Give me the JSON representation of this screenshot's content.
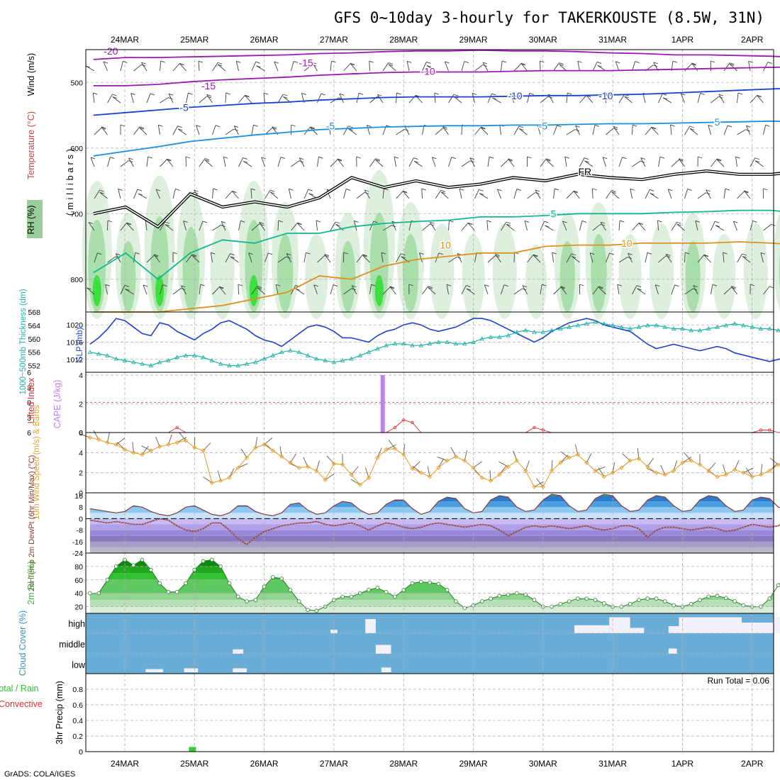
{
  "title": "GFS 0~10day 3-hourly for TAKERKOUSTE (8.5W, 31N)",
  "credit": "GrADS: COLA/IGES",
  "date_labels": [
    "24MAR",
    "25MAR",
    "26MAR",
    "27MAR",
    "28MAR",
    "29MAR",
    "30MAR",
    "31MAR",
    "1APR",
    "2APR"
  ],
  "colors": {
    "slp": "#1f3fd0",
    "thickness": "#20b2aa",
    "lifted_index": "#e03030",
    "cape": "#c080f0",
    "wind": "#e8a030",
    "barb": "#707070",
    "temp_line": "#8a3a3a",
    "rh_fill": "#30c030",
    "cloud_bg": "#6aaed8",
    "cloud_block": "#f2f0f8",
    "precip": "#30d030"
  },
  "chart_data": [
    {
      "type": "heatmap",
      "panel": "upper_air",
      "ylabel": "(millibars)",
      "side_labels": [
        "Wind (m/s)",
        "Temperature (°C)",
        "RH (%)"
      ],
      "ylim": [
        850,
        450
      ],
      "yticks": [
        500,
        600,
        700,
        800
      ],
      "x_dates": [
        "24MAR",
        "25MAR",
        "26MAR",
        "27MAR",
        "28MAR",
        "29MAR",
        "30MAR",
        "31MAR",
        "1APR",
        "2APR"
      ],
      "contour_labels": [
        "-20",
        "-15",
        "-15",
        "-10",
        "-10",
        "-10",
        "-5",
        "-5",
        "-5",
        "5",
        "5",
        "10",
        "10",
        "FR"
      ],
      "isotherms": [
        {
          "label": "-20",
          "color": "#9a1ab0",
          "p": [
            465,
            462,
            462,
            461,
            460,
            459,
            458,
            456,
            455,
            453,
            452,
            452,
            451,
            452,
            452,
            453,
            455,
            456,
            458,
            458,
            459,
            460,
            462,
            463
          ]
        },
        {
          "label": "-15",
          "color": "#9a1ab0",
          "p": [
            505,
            505,
            503,
            499,
            496,
            494,
            492,
            489,
            487,
            485,
            484,
            484,
            484,
            483,
            482,
            482,
            482,
            481,
            480,
            479,
            478,
            477,
            476,
            475
          ]
        },
        {
          "label": "-10",
          "color": "#1a40d0",
          "p": [
            550,
            546,
            542,
            538,
            535,
            532,
            530,
            527,
            525,
            523,
            522,
            522,
            522,
            521,
            520,
            520,
            519,
            518,
            516,
            514,
            512,
            510,
            508,
            507
          ]
        },
        {
          "label": "-5",
          "color": "#1a90e0",
          "p": [
            612,
            605,
            598,
            590,
            585,
            580,
            576,
            572,
            570,
            568,
            567,
            566,
            566,
            565,
            565,
            564,
            563,
            563,
            562,
            561,
            560,
            559,
            560,
            563
          ]
        },
        {
          "label": "0/FR",
          "color": "#000000",
          "p": [
            700,
            690,
            720,
            670,
            690,
            682,
            690,
            676,
            645,
            660,
            650,
            660,
            655,
            645,
            650,
            640,
            645,
            648,
            640,
            635,
            640,
            640,
            635,
            635
          ]
        },
        {
          "label": "5",
          "color": "#10b890",
          "p": [
            790,
            760,
            800,
            760,
            740,
            745,
            730,
            730,
            720,
            715,
            712,
            710,
            705,
            705,
            703,
            700,
            700,
            700,
            698,
            697,
            695,
            695,
            700,
            705
          ]
        },
        {
          "label": "10",
          "color": "#e09020",
          "p": [
            850,
            850,
            850,
            845,
            840,
            830,
            820,
            795,
            800,
            780,
            770,
            765,
            760,
            760,
            750,
            748,
            748,
            745,
            745,
            745,
            743,
            745,
            748,
            750
          ]
        }
      ],
      "rh_intensity": [
        0.9,
        0.6,
        0.95,
        0.8,
        0.5,
        0.9,
        0.7,
        0.4,
        0.6,
        1.0,
        0.7,
        0.5,
        0.4,
        0.5,
        0.3,
        0.6,
        0.7,
        0.4,
        0.5,
        0.6,
        0.4,
        0.5,
        0.7,
        0.6
      ]
    },
    {
      "type": "line",
      "panel": "slp_thickness",
      "series": [
        {
          "name": "SLP (mb)",
          "axis": "right",
          "ylim": [
            1009,
            1023
          ],
          "yticks": [
            1012,
            1016,
            1020
          ],
          "values": [
            1015.5,
            1017,
            1019,
            1021.5,
            1021,
            1019.5,
            1018,
            1017.5,
            1020.5,
            1020,
            1018.5,
            1017.5,
            1016.5,
            1018,
            1019,
            1020.5,
            1021,
            1020,
            1019,
            1017.5,
            1016.5,
            1016,
            1015,
            1016.5,
            1018,
            1019.5,
            1020,
            1019.5,
            1018.5,
            1017,
            1017,
            1016.5,
            1016,
            1017.5,
            1018.5,
            1019,
            1020,
            1020.5,
            1020,
            1019,
            1018.5,
            1019,
            1019.5,
            1020.5,
            1021.5,
            1021.5,
            1021,
            1020,
            1019,
            1018,
            1017,
            1016,
            1017,
            1018.5,
            1019.5,
            1020.5,
            1021,
            1021.5,
            1021,
            1020,
            1019.5,
            1019,
            1018.5,
            1017,
            1015.5,
            1014.5,
            1015,
            1015.5,
            1015,
            1014.5,
            1014,
            1014.5,
            1015,
            1014.5,
            1013.5,
            1013,
            1012.5,
            1012,
            1011.5,
            1012,
            1012.5,
            1012,
            1011
          ]
        },
        {
          "name": "1000~500mb Thickness (dm)",
          "axis": "left",
          "ylim": [
            550,
            568
          ],
          "yticks": [
            552,
            556,
            560,
            564,
            568
          ],
          "values": [
            556,
            555.5,
            555,
            554,
            553.5,
            553,
            552.5,
            552,
            553,
            553.5,
            554.5,
            555,
            555,
            554.5,
            553.5,
            552.5,
            552,
            552,
            552.5,
            553,
            554,
            555,
            556,
            556.5,
            556,
            555,
            554,
            553.5,
            553,
            553.5,
            554,
            555,
            556,
            557,
            558,
            558.5,
            558.5,
            558,
            558,
            558.5,
            559,
            559,
            558.5,
            558.5,
            559,
            560,
            560.5,
            560.5,
            561,
            562,
            562.5,
            562,
            562,
            562.5,
            563,
            563.5,
            564,
            564.5,
            565,
            564.5,
            564,
            563.5,
            563,
            563.5,
            564,
            564,
            563.5,
            563,
            563,
            562.5,
            562.5,
            563,
            563.5,
            564,
            564.5,
            564,
            563.5,
            563,
            563,
            562.5,
            562.5,
            562,
            562
          ]
        }
      ]
    },
    {
      "type": "bar",
      "panel": "stability",
      "series": [
        {
          "name": "Lifted Index",
          "axis": "left",
          "ylim": [
            6,
            -6
          ],
          "yticks": [
            -6,
            -3,
            0,
            3,
            6
          ],
          "values": [
            6,
            6,
            6,
            6,
            6,
            6,
            6,
            6,
            6,
            6,
            5,
            6,
            6,
            6,
            6,
            6,
            6,
            6,
            6,
            6,
            6,
            6,
            6,
            6,
            6,
            6,
            6,
            6,
            6,
            6,
            6,
            6,
            6,
            6,
            6,
            5,
            3.5,
            4,
            6,
            6,
            6,
            6,
            6,
            6,
            6,
            6,
            6,
            6,
            6,
            6,
            6,
            5,
            5.5,
            6,
            6,
            6,
            6,
            6,
            6,
            6,
            6,
            6,
            6,
            6,
            6,
            6,
            6,
            6,
            6,
            6,
            6,
            6,
            6,
            6,
            6,
            6,
            6,
            5.5,
            5.5,
            6,
            6,
            6,
            6
          ]
        },
        {
          "name": "CAPE (J/kg)",
          "axis": "right",
          "ylim": [
            0,
            4.2
          ],
          "yticks": [
            0,
            2,
            4
          ],
          "bars": [
            {
              "date_offset": 3.7,
              "value": 4
            }
          ]
        }
      ]
    },
    {
      "type": "line",
      "panel": "wind10m",
      "ylabel": "10m Wind Speed (m/s) & Barbs",
      "ylim": [
        0,
        6
      ],
      "yticks": [
        0,
        2,
        4,
        6
      ],
      "values": [
        5.5,
        5.3,
        5,
        4.8,
        4.3,
        4,
        3.8,
        4.2,
        4.6,
        4.8,
        5,
        5.2,
        4.5,
        4.2,
        1,
        1.2,
        1.5,
        2.5,
        3.5,
        4.5,
        4.8,
        4.2,
        3.6,
        3,
        2.5,
        2.6,
        2.2,
        1.3,
        2.9,
        2.8,
        1.8,
        0.8,
        1.5,
        3.5,
        4.3,
        4.4,
        3.8,
        2.4,
        2,
        1.6,
        2.5,
        3.2,
        3.6,
        3.2,
        2.5,
        1.5,
        1.2,
        1.8,
        2.6,
        3.2,
        2.2,
        0.6,
        0.6,
        2.2,
        3,
        3.5,
        3.8,
        3,
        2.2,
        1.6,
        2,
        2.5,
        3.2,
        3.4,
        2.6,
        2,
        1.8,
        2.2,
        3,
        3.2,
        2.8,
        2.2,
        1.6,
        1.8,
        2.3,
        2,
        1.6,
        1.8,
        2.2,
        2.8,
        3,
        2.4,
        3.2
      ]
    },
    {
      "type": "area",
      "panel": "temp2m",
      "ylabel": "2m Temp 2m DewPt (6hr Min/Max) (°C)",
      "ylim": [
        -24,
        18
      ],
      "yticks": [
        -24,
        -16,
        -8,
        0,
        8,
        16
      ],
      "temp": [
        7,
        6,
        5,
        4,
        5,
        9,
        8,
        5,
        3,
        2,
        4,
        8,
        9,
        6,
        3,
        2,
        4,
        9,
        9,
        5,
        3,
        2,
        4,
        10,
        11,
        6,
        3,
        4,
        9,
        12,
        11,
        6,
        3,
        4,
        10,
        13,
        13,
        7,
        3,
        5,
        12,
        15,
        14,
        7,
        4,
        5,
        13,
        16,
        15,
        8,
        5,
        6,
        13,
        17,
        16,
        9,
        5,
        6,
        14,
        17,
        16,
        9,
        5,
        6,
        13,
        16,
        15,
        9,
        5,
        6,
        13,
        16,
        15,
        9,
        5,
        6,
        13,
        15,
        14,
        8,
        6,
        6,
        7
      ],
      "dewpoint": [
        -1,
        -2,
        -3,
        -2,
        -3,
        -4,
        -4,
        -2,
        0,
        -1,
        -5,
        -8,
        -9,
        -7,
        -3,
        -3,
        -8,
        -14,
        -18,
        -13,
        -9,
        -7,
        -5,
        -4,
        -3,
        -3,
        -2,
        -4,
        -5,
        -4,
        -3,
        -5,
        -8,
        -5,
        -3,
        -4,
        -6,
        -7,
        -6,
        -4,
        -3,
        -4,
        -5,
        -6,
        -5,
        -4,
        -5,
        -8,
        -12,
        -9,
        -6,
        -5,
        -6,
        -5,
        -6,
        -7,
        -6,
        -5,
        -7,
        -8,
        -7,
        -5,
        -5,
        -7,
        -13,
        -8,
        -6,
        -6,
        -7,
        -8,
        -7,
        -6,
        -7,
        -9,
        -8,
        -6,
        -4,
        -5,
        -6,
        -5,
        -1,
        -2,
        -3
      ]
    },
    {
      "type": "area",
      "panel": "rh2m",
      "ylabel": "2m RH (%)",
      "ylim": [
        10,
        100
      ],
      "yticks": [
        20,
        40,
        60,
        80
      ],
      "values": [
        40,
        40,
        60,
        80,
        90,
        82,
        90,
        75,
        55,
        42,
        42,
        55,
        75,
        88,
        90,
        80,
        55,
        35,
        28,
        30,
        50,
        64,
        62,
        45,
        28,
        15,
        14,
        20,
        30,
        35,
        35,
        40,
        45,
        48,
        42,
        35,
        45,
        55,
        57,
        56,
        54,
        45,
        28,
        18,
        22,
        28,
        32,
        36,
        38,
        40,
        38,
        30,
        20,
        20,
        24,
        28,
        32,
        32,
        30,
        25,
        20,
        20,
        24,
        30,
        32,
        32,
        28,
        22,
        20,
        24,
        30,
        35,
        36,
        33,
        28,
        22,
        20,
        20,
        32,
        52,
        64,
        60,
        48
      ]
    },
    {
      "type": "heatmap",
      "panel": "cloud",
      "ylabel": "Cloud Cover (%)",
      "categories": [
        "high",
        "middle",
        "low"
      ],
      "clear_blocks": [
        {
          "level": "low",
          "from": 0.3,
          "to": 0.55,
          "value": 0.2
        },
        {
          "level": "low",
          "from": 0.85,
          "to": 1.05,
          "value": 0.25
        },
        {
          "level": "low",
          "from": 1.55,
          "to": 1.75,
          "value": 0.25
        },
        {
          "level": "middle",
          "from": 1.55,
          "to": 1.7,
          "value": 0.25
        },
        {
          "level": "low",
          "from": 3.68,
          "to": 3.82,
          "value": 0.3
        },
        {
          "level": "middle",
          "from": 3.6,
          "to": 3.82,
          "value": 0.5
        },
        {
          "level": "high",
          "from": 3.45,
          "to": 3.6,
          "value": 0.8
        },
        {
          "level": "high",
          "from": 2.95,
          "to": 3.05,
          "value": 0.2
        },
        {
          "level": "high",
          "from": 6.45,
          "to": 6.95,
          "value": 0.45
        },
        {
          "level": "high",
          "from": 6.95,
          "to": 7.25,
          "value": 0.9
        },
        {
          "level": "high",
          "from": 7.25,
          "to": 7.45,
          "value": 0.3
        },
        {
          "level": "high",
          "from": 7.8,
          "to": 7.95,
          "value": 0.4
        },
        {
          "level": "high",
          "from": 7.95,
          "to": 8.85,
          "value": 0.9
        },
        {
          "level": "middle",
          "from": 7.8,
          "to": 7.92,
          "value": 0.3
        },
        {
          "level": "high",
          "from": 8.4,
          "to": 8.55,
          "value": 0.2
        },
        {
          "level": "high",
          "from": 8.85,
          "to": 9.3,
          "value": 0.6
        },
        {
          "level": "high",
          "from": 9.3,
          "to": 10.3,
          "value": 0.9
        }
      ]
    },
    {
      "type": "bar",
      "panel": "precip",
      "ylabel": "3hr Precip (mm)",
      "legend": [
        "Total / Rain",
        "Convective"
      ],
      "annotation": "Run Total = 0.06",
      "ylim": [
        0,
        1
      ],
      "yticks": [
        0,
        0.2,
        0.4,
        0.6,
        0.8
      ],
      "bars": [
        {
          "date_offset": 0.97,
          "value": 0.06
        }
      ]
    }
  ]
}
